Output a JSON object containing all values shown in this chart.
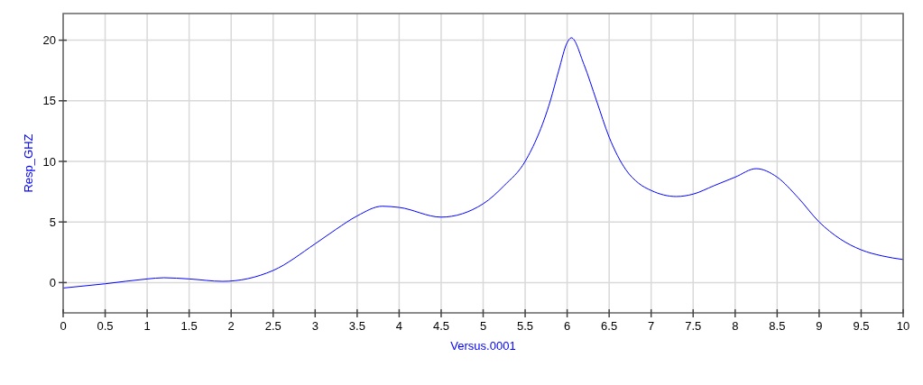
{
  "chart_data": {
    "type": "line",
    "xlabel": "Versus.0001",
    "ylabel": "Resp_GHZ",
    "xlim": [
      0,
      10
    ],
    "ylim": [
      -2.5,
      22.2
    ],
    "xticks": [
      0,
      0.5,
      1,
      1.5,
      2,
      2.5,
      3,
      3.5,
      4,
      4.5,
      5,
      5.5,
      6,
      6.5,
      7,
      7.5,
      8,
      8.5,
      9,
      9.5,
      10
    ],
    "yticks": [
      0,
      5,
      10,
      15,
      20
    ],
    "grid": true,
    "line_style": "solid",
    "series": [
      {
        "color": "#0000ff",
        "x": [
          0,
          0.5,
          1,
          1.2,
          1.5,
          1.9,
          2.5,
          3,
          3.25,
          3.5,
          3.8,
          4,
          4.5,
          5,
          5.25,
          5.5,
          5.8,
          5.9,
          6,
          6.05,
          6.2,
          6.35,
          6.5,
          6.7,
          6.85,
          7,
          7.3,
          7.5,
          7.75,
          8,
          8.25,
          8.5,
          8.75,
          9,
          9.25,
          9.5,
          9.75,
          10
        ],
        "values": [
          -0.45,
          -0.1,
          0.3,
          0.4,
          0.3,
          0.1,
          1.0,
          3.2,
          4.4,
          5.5,
          6.3,
          6.2,
          5.4,
          6.5,
          8,
          10.0,
          15,
          17.5,
          19.8,
          20.2,
          18,
          15,
          12,
          9.3,
          8.2,
          7.6,
          7.1,
          7.3,
          8.0,
          8.7,
          9.4,
          8.7,
          7.0,
          5.0,
          3.6,
          2.7,
          2.2,
          1.9
        ]
      }
    ]
  }
}
